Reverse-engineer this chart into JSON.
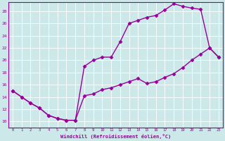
{
  "title": "",
  "xlabel": "Windchill (Refroidissement éolien,°C)",
  "bg_color": "#cce8e8",
  "line_color": "#990099",
  "marker": "D",
  "markersize": 2.5,
  "linewidth": 1.0,
  "xlim": [
    -0.5,
    23.5
  ],
  "ylim": [
    9,
    29.5
  ],
  "xticks": [
    0,
    1,
    2,
    3,
    4,
    5,
    6,
    7,
    8,
    9,
    10,
    11,
    12,
    13,
    14,
    15,
    16,
    17,
    18,
    19,
    20,
    21,
    22,
    23
  ],
  "yticks": [
    10,
    12,
    14,
    16,
    18,
    20,
    22,
    24,
    26,
    28
  ],
  "curve_upper_x": [
    0,
    1,
    2,
    3,
    4,
    5,
    6,
    7,
    8,
    9,
    10,
    11,
    12,
    13,
    14,
    15,
    16,
    17,
    18,
    19,
    20,
    21,
    22,
    23
  ],
  "curve_upper_y": [
    15,
    14,
    13,
    12.2,
    11,
    10.5,
    10.2,
    10.2,
    19,
    20,
    20.5,
    20.5,
    23,
    26,
    26.5,
    27,
    27.3,
    28.2,
    29.2,
    28.8,
    28.5,
    28.3,
    22.0,
    20.5
  ],
  "curve_lower_x": [
    0,
    1,
    2,
    3,
    4,
    5,
    6,
    7,
    8,
    9,
    10,
    11,
    12,
    13,
    14,
    15,
    16,
    17,
    18,
    19,
    20,
    21,
    22,
    23
  ],
  "curve_lower_y": [
    15,
    14,
    13,
    12.2,
    11,
    10.5,
    10.2,
    10.2,
    14.2,
    14.5,
    15.2,
    15.5,
    16.0,
    16.5,
    17.0,
    16.2,
    16.5,
    17.2,
    17.8,
    18.8,
    20.0,
    21.0,
    22.0,
    20.5
  ]
}
